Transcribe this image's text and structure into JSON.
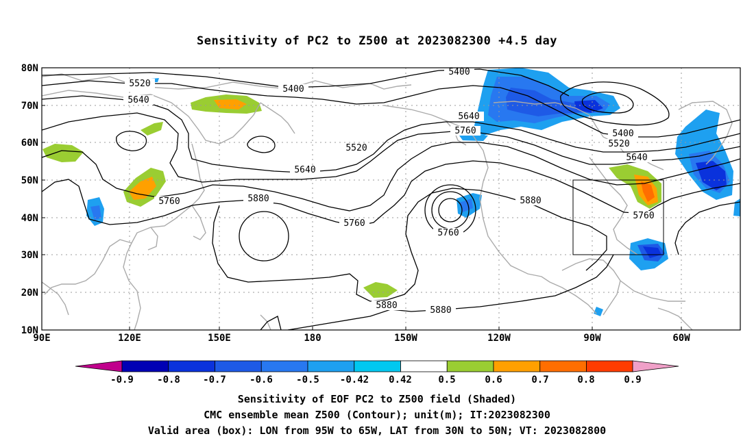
{
  "title": "Sensitivity of PC2 to Z500 at 2023082300 +4.5 day",
  "lat_labels": [
    "80N",
    "70N",
    "60N",
    "50N",
    "40N",
    "30N",
    "20N",
    "10N"
  ],
  "lon_labels": [
    "90E",
    "120E",
    "150E",
    "180",
    "150W",
    "120W",
    "90W",
    "60W"
  ],
  "colorbar": {
    "tick_labels": [
      "-0.9",
      "-0.8",
      "-0.7",
      "-0.6",
      "-0.5",
      "-0.42",
      "0.42",
      "0.5",
      "0.6",
      "0.7",
      "0.8",
      "0.9"
    ],
    "colors": [
      "#c0008c",
      "#0000b4",
      "#0a32dc",
      "#1e5ae6",
      "#2878f0",
      "#1ea0f0",
      "#00c8f0",
      "#ffffff",
      "#9acd32",
      "#ffa000",
      "#ff6e00",
      "#ff3c00",
      "#ff0000",
      "#f0a0c8"
    ]
  },
  "contour_labels": [
    "5520",
    "5640",
    "5400",
    "5400",
    "5520",
    "5640",
    "5640",
    "5760",
    "5400",
    "5520",
    "5640",
    "5760",
    "5880",
    "5760",
    "5760",
    "5880",
    "5760",
    "5880",
    "5880"
  ],
  "valid_box": {
    "lon_from": "95W",
    "lon_to": "65W",
    "lat_from": "30N",
    "lat_to": "50N"
  },
  "captions": [
    "Sensitivity of EOF PC2 to Z500 field (Shaded)",
    "CMC ensemble mean Z500 (Contour); unit(m); IT:2023082300",
    "Valid area (box): LON from 95W to 65W, LAT from 30N to 50N; VT: 2023082800"
  ]
}
